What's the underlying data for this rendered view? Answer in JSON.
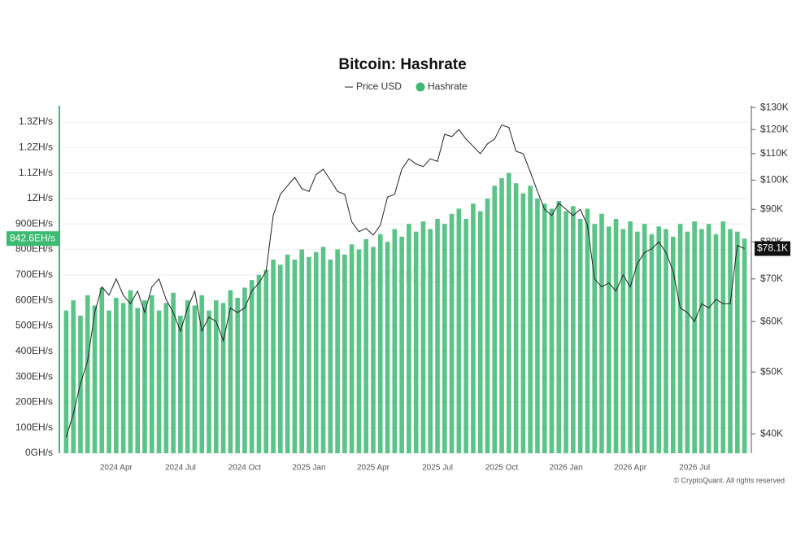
{
  "chart_data": {
    "type": "combo",
    "title": "Bitcoin: Hashrate",
    "watermark": "CryptoQuant",
    "credit": "© CryptoQuant. All rights reserved",
    "categories": [
      null,
      null,
      null,
      null,
      null,
      null,
      null,
      "2024 Apr",
      null,
      null,
      null,
      null,
      null,
      null,
      null,
      null,
      "2024 Jul",
      null,
      null,
      null,
      null,
      null,
      null,
      null,
      null,
      "2024 Oct",
      null,
      null,
      null,
      null,
      null,
      null,
      null,
      null,
      "2025 Jan",
      null,
      null,
      null,
      null,
      null,
      null,
      null,
      null,
      "2025 Apr",
      null,
      null,
      null,
      null,
      null,
      null,
      null,
      null,
      "2025 Jul",
      null,
      null,
      null,
      null,
      null,
      null,
      null,
      null,
      "2025 Oct",
      null,
      null,
      null,
      null,
      null,
      null,
      null,
      null,
      "2026 Jan",
      null,
      null,
      null,
      null,
      null,
      null,
      null,
      null,
      "2026 Apr",
      null,
      null,
      null,
      null,
      null,
      null,
      null,
      null,
      "2026 Jul",
      null,
      null,
      null,
      null,
      null,
      null,
      null
    ],
    "series": [
      {
        "name": "Price USD",
        "type": "line",
        "axis": "y2",
        "color": "#222222",
        "values": [
          39500,
          43000,
          48000,
          52000,
          62000,
          68000,
          66000,
          70000,
          66000,
          64000,
          67000,
          62000,
          68000,
          70000,
          65000,
          62000,
          58000,
          63000,
          67000,
          58000,
          61000,
          60000,
          56000,
          63000,
          62000,
          63000,
          67000,
          69000,
          72000,
          88000,
          95000,
          98000,
          101000,
          97000,
          96000,
          102000,
          104000,
          100000,
          96000,
          95000,
          86000,
          83000,
          84000,
          82000,
          85000,
          94000,
          95000,
          104000,
          108000,
          106000,
          105000,
          108000,
          107000,
          118000,
          117000,
          120000,
          116000,
          113000,
          110000,
          114000,
          116000,
          122000,
          121000,
          111000,
          110000,
          103000,
          96000,
          90000,
          88000,
          92000,
          90000,
          88000,
          90000,
          85000,
          70000,
          68000,
          69000,
          67000,
          71000,
          68000,
          74000,
          77000,
          78000,
          80000,
          77000,
          72000,
          63000,
          62000,
          60000,
          64000,
          63000,
          65000,
          64000,
          64000,
          79000,
          78100
        ],
        "value_labels": [
          null,
          null,
          null,
          null,
          null,
          null,
          null,
          null,
          null,
          null,
          null,
          null,
          null,
          null,
          null,
          null,
          null,
          null,
          null,
          null,
          null,
          null,
          null,
          null,
          null,
          null,
          null,
          null,
          null,
          null,
          null,
          null,
          null,
          null,
          null,
          null,
          null,
          null,
          null,
          null,
          null,
          null,
          null,
          null,
          null,
          null,
          null,
          null,
          null,
          null,
          null,
          null,
          null,
          null,
          null,
          null,
          null,
          null,
          null,
          null,
          null,
          null,
          null,
          null,
          null,
          null,
          null,
          null,
          null,
          null,
          null,
          null,
          null,
          null,
          null,
          null,
          null,
          null,
          null,
          null,
          null,
          null,
          null,
          null,
          null,
          null,
          null,
          null,
          null,
          null,
          null,
          null,
          null,
          null,
          null,
          "$78.1K"
        ]
      },
      {
        "name": "Hashrate",
        "type": "bar",
        "color": "#3dba72",
        "values": [
          560,
          600,
          540,
          620,
          580,
          650,
          560,
          610,
          590,
          640,
          570,
          600,
          620,
          560,
          590,
          630,
          540,
          600,
          580,
          620,
          560,
          600,
          590,
          640,
          610,
          650,
          680,
          700,
          720,
          760,
          740,
          780,
          760,
          800,
          770,
          790,
          810,
          760,
          800,
          780,
          820,
          800,
          840,
          810,
          860,
          830,
          880,
          850,
          900,
          870,
          910,
          880,
          920,
          900,
          940,
          960,
          920,
          980,
          950,
          1000,
          1050,
          1080,
          1100,
          1060,
          1020,
          1050,
          1000,
          980,
          960,
          990,
          950,
          970,
          920,
          960,
          900,
          940,
          890,
          920,
          880,
          910,
          870,
          900,
          860,
          890,
          880,
          850,
          900,
          870,
          910,
          880,
          900,
          860,
          910,
          880,
          870,
          842.6
        ],
        "value_labels": [
          null,
          null,
          null,
          null,
          null,
          null,
          null,
          null,
          null,
          null,
          null,
          null,
          null,
          null,
          null,
          null,
          null,
          null,
          null,
          null,
          null,
          null,
          null,
          null,
          null,
          null,
          null,
          null,
          null,
          null,
          null,
          null,
          null,
          null,
          null,
          null,
          null,
          null,
          null,
          null,
          null,
          null,
          null,
          null,
          null,
          null,
          null,
          null,
          null,
          null,
          null,
          null,
          null,
          null,
          null,
          null,
          null,
          null,
          null,
          null,
          null,
          null,
          null,
          null,
          null,
          null,
          null,
          null,
          null,
          null,
          null,
          null,
          null,
          null,
          null,
          null,
          null,
          null,
          null,
          null,
          null,
          null,
          null,
          null,
          null,
          null,
          null,
          null,
          null,
          null,
          null,
          null,
          null,
          null,
          null,
          "842.6EH/s"
        ]
      }
    ],
    "ylim": [
      0,
      1364
    ],
    "yticks": [
      {
        "value": 0,
        "label": "0GH/s"
      },
      {
        "value": 100,
        "label": "100EH/s"
      },
      {
        "value": 200,
        "label": "200EH/s"
      },
      {
        "value": 300,
        "label": "300EH/s"
      },
      {
        "value": 400,
        "label": "400EH/s"
      },
      {
        "value": 500,
        "label": "500EH/s"
      },
      {
        "value": 600,
        "label": "600EH/s"
      },
      {
        "value": 700,
        "label": "700EH/s"
      },
      {
        "value": 800,
        "label": "800EH/s"
      },
      {
        "value": 900,
        "label": "900EH/s"
      },
      {
        "value": 1000,
        "label": "1ZH/s"
      },
      {
        "value": 1100,
        "label": "1.1ZH/s"
      },
      {
        "value": 1200,
        "label": "1.2ZH/s"
      },
      {
        "value": 1300,
        "label": "1.3ZH/s"
      }
    ],
    "y2lim": [
      37300,
      130800
    ],
    "y2scale": "log",
    "y2ticks": [
      {
        "value": 40000,
        "label": "$40K"
      },
      {
        "value": 50000,
        "label": "$50K"
      },
      {
        "value": 60000,
        "label": "$60K"
      },
      {
        "value": 70000,
        "label": "$70K"
      },
      {
        "value": 80000,
        "label": "$80K"
      },
      {
        "value": 90000,
        "label": "$90K"
      },
      {
        "value": 100000,
        "label": "$100K"
      },
      {
        "value": 110000,
        "label": "$110K"
      },
      {
        "value": 120000,
        "label": "$120K"
      },
      {
        "value": 130000,
        "label": "$130K"
      }
    ],
    "grid": true
  }
}
